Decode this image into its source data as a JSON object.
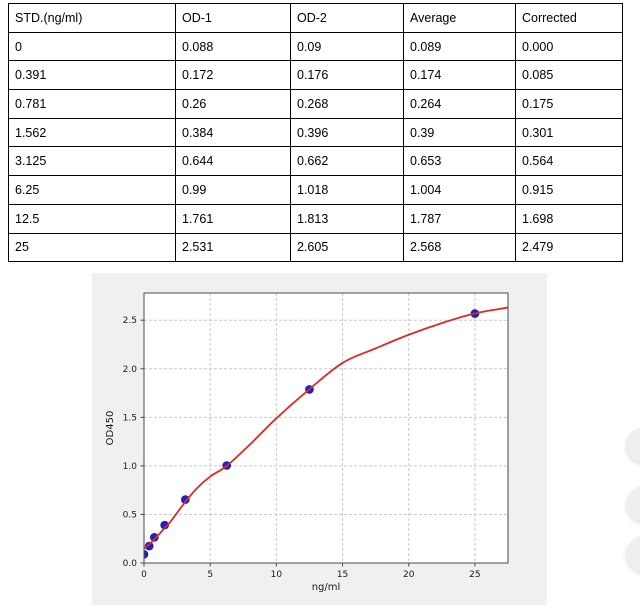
{
  "table": {
    "headers": [
      "STD.(ng/ml)",
      "OD-1",
      "OD-2",
      "Average",
      "Corrected"
    ],
    "rows": [
      [
        "0",
        "0.088",
        "0.09",
        "0.089",
        "0.000"
      ],
      [
        "0.391",
        "0.172",
        "0.176",
        "0.174",
        "0.085"
      ],
      [
        "0.781",
        "0.26",
        "0.268",
        "0.264",
        "0.175"
      ],
      [
        "1.562",
        "0.384",
        "0.396",
        "0.39",
        "0.301"
      ],
      [
        "3.125",
        "0.644",
        "0.662",
        "0.653",
        "0.564"
      ],
      [
        "6.25",
        "0.99",
        "1.018",
        "1.004",
        "0.915"
      ],
      [
        "12.5",
        "1.761",
        "1.813",
        "1.787",
        "1.698"
      ],
      [
        "25",
        "2.531",
        "2.605",
        "2.568",
        "2.479"
      ]
    ]
  },
  "chart_data": {
    "type": "scatter",
    "title": "",
    "xlabel": "ng/ml",
    "ylabel": "OD450",
    "xlim": [
      0,
      27.5
    ],
    "ylim": [
      0,
      2.78
    ],
    "grid": true,
    "legend_position": "none",
    "x_ticks": {
      "values": [
        0,
        5,
        10,
        15,
        20,
        25
      ],
      "labels": [
        "0",
        "5",
        "10",
        "15",
        "20",
        "25"
      ]
    },
    "y_ticks": {
      "values": [
        0,
        0.5,
        1.0,
        1.5,
        2.0,
        2.5
      ],
      "labels": [
        "0.0",
        "0.5",
        "1.0",
        "1.5",
        "2.0",
        "2.5"
      ]
    },
    "points": {
      "x": [
        0,
        0.391,
        0.781,
        1.562,
        3.125,
        6.25,
        12.5,
        25
      ],
      "y": [
        0.089,
        0.174,
        0.264,
        0.39,
        0.653,
        1.004,
        1.787,
        2.568
      ]
    },
    "fit_curve": [
      [
        0,
        0.15
      ],
      [
        0.5,
        0.205
      ],
      [
        1,
        0.275
      ],
      [
        1.562,
        0.36
      ],
      [
        2,
        0.425
      ],
      [
        3.125,
        0.63
      ],
      [
        4,
        0.77
      ],
      [
        5,
        0.89
      ],
      [
        6.25,
        1.0
      ],
      [
        8,
        1.22
      ],
      [
        10,
        1.49
      ],
      [
        12.5,
        1.79
      ],
      [
        15,
        2.06
      ],
      [
        17.5,
        2.21
      ],
      [
        20,
        2.35
      ],
      [
        22.5,
        2.47
      ],
      [
        25,
        2.57
      ],
      [
        27.5,
        2.63
      ]
    ],
    "colors": {
      "curve": "#d92b2b",
      "points": "#2121c4",
      "point_edge": "#15158a",
      "figure_bg": "#f0f0f0",
      "plot_bg": "#ffffff",
      "grid": "#c9c9c9",
      "spine": "#4a4a4a",
      "tick_text": "#1a1a1a"
    }
  },
  "floating_widgets": {
    "color": "#efefef",
    "buttons": [
      "widget-button-1",
      "widget-button-2",
      "widget-button-3"
    ]
  }
}
